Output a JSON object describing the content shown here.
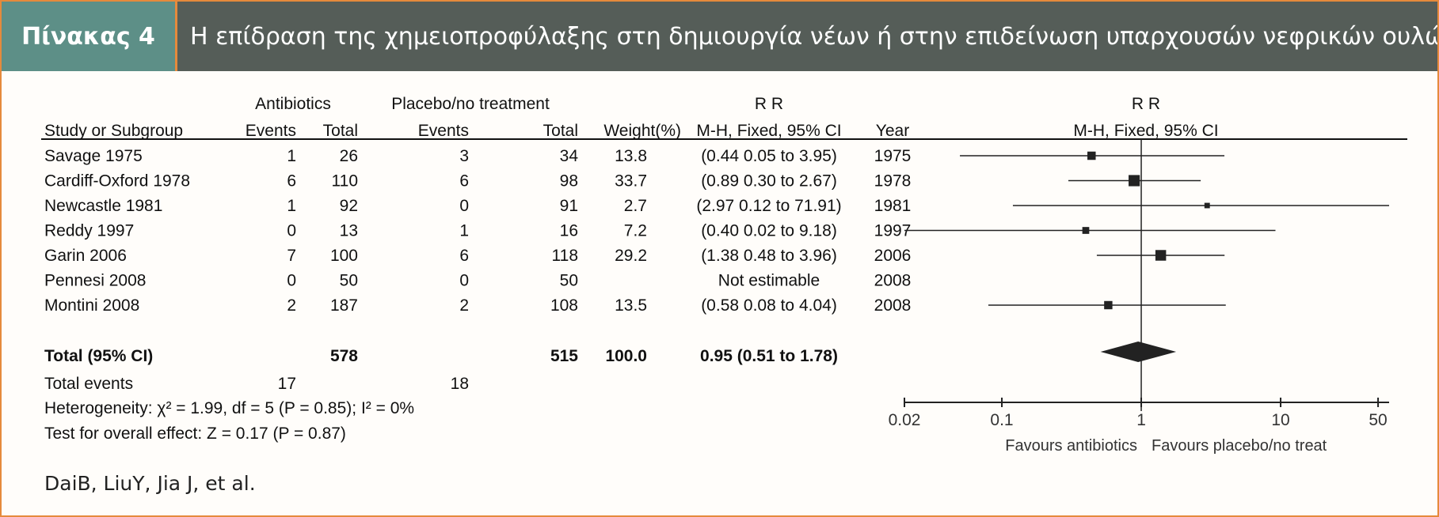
{
  "header": {
    "label": "Πίνακας 4",
    "title": "Η επίδραση της χημειοπροφύλαξης στη δημιουργία νέων ή στην επιδείνωση υπαρχουσών νεφρικών ουλών"
  },
  "table_headers": {
    "group1": "Antibiotics",
    "group2": "Placebo/no treatment",
    "rr_text": "R R",
    "rr_plot": "R R",
    "study": "Study or Subgroup",
    "events1": "Events",
    "total1": "Total",
    "events2": "Events",
    "total2": "Total",
    "weight": "Weight(%)",
    "method_text": "M-H, Fixed, 95% CI",
    "year": "Year",
    "method_plot": "M-H, Fixed, 95% CI"
  },
  "chart_data": {
    "type": "forest",
    "x_scale": "log",
    "xlim": [
      0.02,
      60
    ],
    "xticks": [
      "0.02",
      "0.1",
      "1",
      "10",
      "50"
    ],
    "favours_left": "Favours antibiotics",
    "favours_right": "Favours placebo/no treat",
    "studies": [
      {
        "study": "Savage 1975",
        "events1": "1",
        "total1": "26",
        "events2": "3",
        "total2": "34",
        "weight": "13.8",
        "ci_text": "(0.44  0.05 to 3.95)",
        "year": "1975",
        "rr": 0.44,
        "lo": 0.05,
        "hi": 3.95
      },
      {
        "study": "Cardiff-Oxford 1978",
        "events1": "6",
        "total1": "110",
        "events2": "6",
        "total2": "98",
        "weight": "33.7",
        "ci_text": "(0.89  0.30 to 2.67)",
        "year": "1978",
        "rr": 0.89,
        "lo": 0.3,
        "hi": 2.67
      },
      {
        "study": "Newcastle 1981",
        "events1": "1",
        "total1": "92",
        "events2": "0",
        "total2": "91",
        "weight": "2.7",
        "ci_text": "(2.97  0.12 to 71.91)",
        "year": "1981",
        "rr": 2.97,
        "lo": 0.12,
        "hi": 71.91
      },
      {
        "study": "Reddy 1997",
        "events1": "0",
        "total1": "13",
        "events2": "1",
        "total2": "16",
        "weight": "7.2",
        "ci_text": "(0.40  0.02 to 9.18)",
        "year": "1997",
        "rr": 0.4,
        "lo": 0.02,
        "hi": 9.18
      },
      {
        "study": "Garin 2006",
        "events1": "7",
        "total1": "100",
        "events2": "6",
        "total2": "118",
        "weight": "29.2",
        "ci_text": "(1.38  0.48 to 3.96)",
        "year": "2006",
        "rr": 1.38,
        "lo": 0.48,
        "hi": 3.96
      },
      {
        "study": "Pennesi  2008",
        "events1": "0",
        "total1": "50",
        "events2": "0",
        "total2": "50",
        "weight": "",
        "ci_text": "Not estimable",
        "year": "2008",
        "rr": null,
        "lo": null,
        "hi": null
      },
      {
        "study": "Montini 2008",
        "events1": "2",
        "total1": "187",
        "events2": "2",
        "total2": "108",
        "weight": "13.5",
        "ci_text": "(0.58  0.08 to 4.04)",
        "year": "2008",
        "rr": 0.58,
        "lo": 0.08,
        "hi": 4.04
      }
    ],
    "total": {
      "label": "Total (95% CI)",
      "total1": "578",
      "total2": "515",
      "weight": "100.0",
      "ci_text": "0.95 (0.51 to 1.78)",
      "rr": 0.95,
      "lo": 0.51,
      "hi": 1.78
    },
    "total_events": {
      "label": "Total events",
      "events1": "17",
      "events2": "18"
    },
    "heterogeneity": "Heterogeneity: χ² = 1.99,  df = 5 (P = 0.85);  I² = 0%",
    "overall_effect": "Test for overall effect: Z = 0.17 (P = 0.87)"
  },
  "citation": "DaiB, LiuY, Jia J, et al."
}
